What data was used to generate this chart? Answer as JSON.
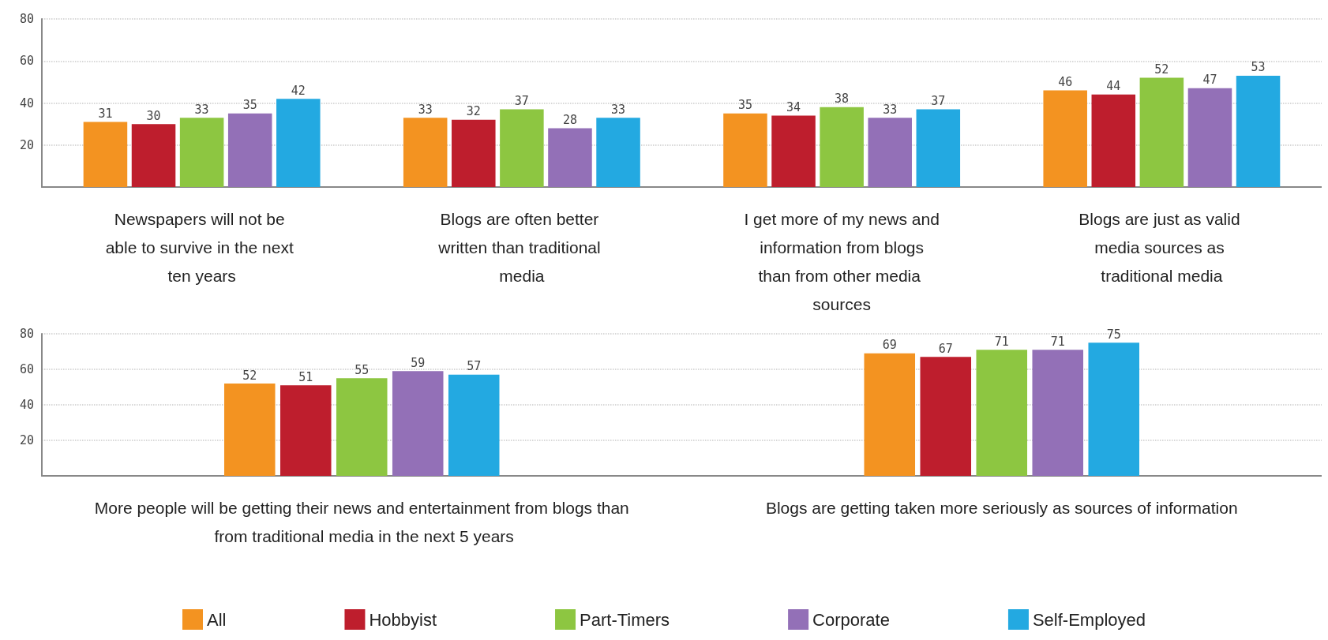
{
  "chart_data": [
    {
      "type": "bar",
      "categories": [
        "Newspapers will not be able to survive in the next ten years",
        "Blogs are often better written than traditional media",
        "I get more of my news and information from blogs than from other media sources",
        "Blogs are just as valid media sources as traditional media"
      ],
      "series": [
        {
          "color": "#f39321",
          "values": [
            31,
            33,
            35,
            46
          ]
        },
        {
          "color": "#be1e2d",
          "values": [
            30,
            32,
            34,
            44
          ]
        },
        {
          "color": "#8dc641",
          "values": [
            33,
            37,
            38,
            52
          ]
        },
        {
          "color": "#9370b7",
          "values": [
            35,
            28,
            33,
            47
          ]
        },
        {
          "color": "#23a9e1",
          "values": [
            42,
            33,
            37,
            53
          ]
        }
      ],
      "ylim": [
        0,
        80
      ],
      "yticks": [
        20,
        40,
        60,
        80
      ],
      "grid": "y",
      "data_labels": true,
      "legend": false
    },
    {
      "type": "bar",
      "categories": [
        "More people will be getting their news and entertainment from blogs than from traditional media in the next 5 years",
        "Blogs are getting taken more seriously as sources of information"
      ],
      "series": [
        {
          "name": "All",
          "color": "#f39321",
          "values": [
            52,
            69
          ]
        },
        {
          "name": "Hobbyist",
          "color": "#be1e2d",
          "values": [
            51,
            67
          ]
        },
        {
          "name": "Part-Timers",
          "color": "#8dc641",
          "values": [
            55,
            71
          ]
        },
        {
          "name": "Corporate",
          "color": "#9370b7",
          "values": [
            59,
            71
          ]
        },
        {
          "name": "Self-Employed",
          "color": "#23a9e1",
          "values": [
            57,
            75
          ]
        }
      ],
      "ylim": [
        0,
        80
      ],
      "yticks": [
        20,
        40,
        60,
        80
      ],
      "grid": "y",
      "data_labels": true,
      "legend": "bottom"
    }
  ]
}
